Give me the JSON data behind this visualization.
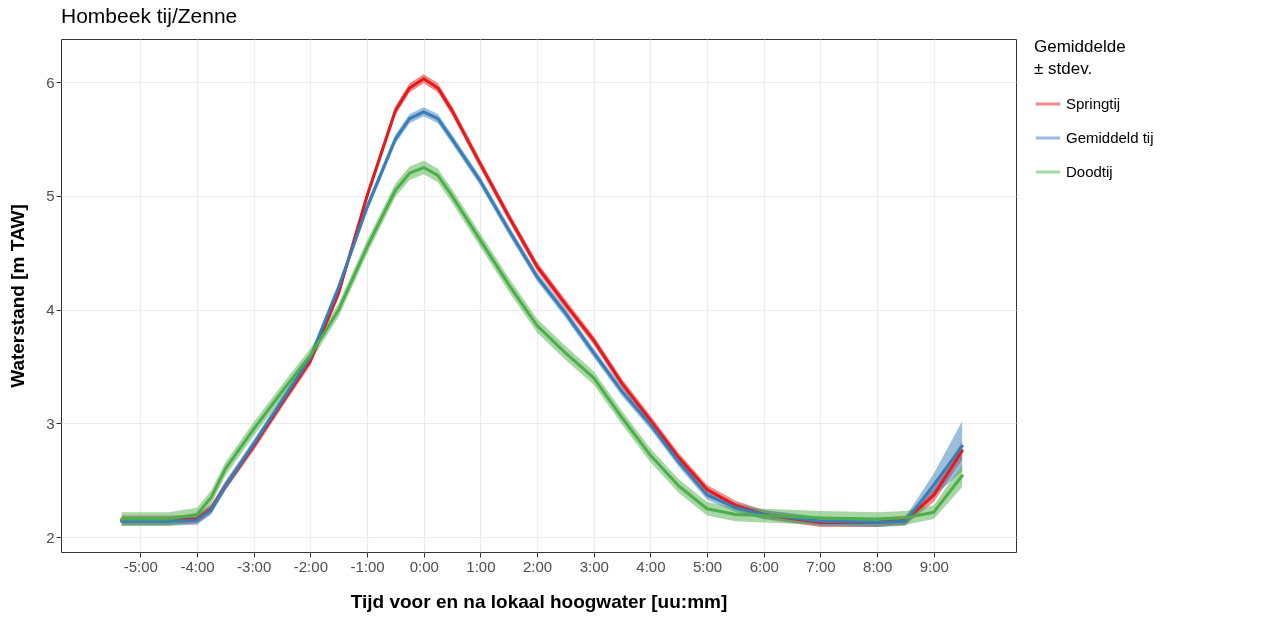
{
  "chart_data": {
    "type": "line",
    "title": "Hombeek tij/Zenne",
    "xlabel": "Tijd voor en na lokaal hoogwater [uu:mm]",
    "ylabel": "Waterstand [m TAW]",
    "legend_title": "Gemiddelde\n± stdev.",
    "legend": "right",
    "grid": true,
    "line_style": "solid",
    "x": [
      -5.33,
      -5,
      -4.5,
      -4,
      -3.75,
      -3.5,
      -3,
      -2.5,
      -2,
      -1.5,
      -1,
      -0.5,
      -0.25,
      0,
      0.25,
      0.5,
      1,
      1.5,
      2,
      2.5,
      3,
      3.5,
      4,
      4.5,
      5,
      5.5,
      6,
      7,
      8,
      8.5,
      9,
      9.5
    ],
    "xlim": [
      -6.4,
      10.45
    ],
    "ylim": [
      1.87,
      6.38
    ],
    "xticks": [
      {
        "value": -5,
        "label": "-5:00"
      },
      {
        "value": -4,
        "label": "-4:00"
      },
      {
        "value": -3,
        "label": "-3:00"
      },
      {
        "value": -2,
        "label": "-2:00"
      },
      {
        "value": -1,
        "label": "-1:00"
      },
      {
        "value": 0,
        "label": "0:00"
      },
      {
        "value": 1,
        "label": "1:00"
      },
      {
        "value": 2,
        "label": "2:00"
      },
      {
        "value": 3,
        "label": "3:00"
      },
      {
        "value": 4,
        "label": "4:00"
      },
      {
        "value": 5,
        "label": "5:00"
      },
      {
        "value": 6,
        "label": "6:00"
      },
      {
        "value": 7,
        "label": "7:00"
      },
      {
        "value": 8,
        "label": "8:00"
      },
      {
        "value": 9,
        "label": "9:00"
      }
    ],
    "yticks": [
      2,
      3,
      4,
      5,
      6
    ],
    "series": [
      {
        "name": "Springtij",
        "color": "#e41a1c",
        "values": [
          2.15,
          2.15,
          2.15,
          2.16,
          2.25,
          2.45,
          2.8,
          3.18,
          3.55,
          4.15,
          5.0,
          5.75,
          5.95,
          6.03,
          5.95,
          5.75,
          5.28,
          4.82,
          4.38,
          4.05,
          3.73,
          3.35,
          3.03,
          2.7,
          2.42,
          2.28,
          2.2,
          2.13,
          2.13,
          2.15,
          2.37,
          2.76
        ],
        "lower": [
          2.11,
          2.11,
          2.11,
          2.12,
          2.21,
          2.41,
          2.76,
          3.14,
          3.51,
          4.11,
          4.96,
          5.71,
          5.91,
          5.99,
          5.91,
          5.71,
          5.24,
          4.78,
          4.34,
          4.01,
          3.69,
          3.31,
          2.99,
          2.66,
          2.38,
          2.24,
          2.16,
          2.09,
          2.09,
          2.11,
          2.31,
          2.68
        ],
        "upper": [
          2.19,
          2.19,
          2.19,
          2.2,
          2.29,
          2.49,
          2.84,
          3.22,
          3.59,
          4.19,
          5.04,
          5.79,
          5.99,
          6.07,
          5.99,
          5.79,
          5.32,
          4.86,
          4.42,
          4.09,
          3.77,
          3.39,
          3.07,
          2.74,
          2.46,
          2.32,
          2.24,
          2.17,
          2.17,
          2.19,
          2.43,
          2.84
        ]
      },
      {
        "name": "Gemiddeld tij",
        "color": "#377eb8",
        "values": [
          2.14,
          2.14,
          2.14,
          2.15,
          2.24,
          2.45,
          2.82,
          3.2,
          3.58,
          4.2,
          4.9,
          5.5,
          5.68,
          5.74,
          5.68,
          5.5,
          5.13,
          4.7,
          4.29,
          3.97,
          3.62,
          3.28,
          2.99,
          2.66,
          2.37,
          2.26,
          2.2,
          2.14,
          2.13,
          2.14,
          2.46,
          2.8
        ],
        "lower": [
          2.1,
          2.1,
          2.1,
          2.11,
          2.2,
          2.41,
          2.78,
          3.16,
          3.54,
          4.16,
          4.86,
          5.46,
          5.64,
          5.7,
          5.64,
          5.46,
          5.09,
          4.66,
          4.25,
          3.93,
          3.58,
          3.24,
          2.95,
          2.62,
          2.33,
          2.22,
          2.16,
          2.1,
          2.09,
          2.1,
          2.36,
          2.58
        ],
        "upper": [
          2.18,
          2.18,
          2.18,
          2.19,
          2.28,
          2.49,
          2.86,
          3.24,
          3.62,
          4.24,
          4.94,
          5.54,
          5.72,
          5.78,
          5.72,
          5.54,
          5.17,
          4.74,
          4.33,
          4.01,
          3.66,
          3.32,
          3.03,
          2.7,
          2.41,
          2.3,
          2.24,
          2.18,
          2.17,
          2.18,
          2.56,
          3.02
        ]
      },
      {
        "name": "Doodtij",
        "color": "#4daf4a",
        "values": [
          2.16,
          2.16,
          2.16,
          2.2,
          2.35,
          2.6,
          2.95,
          3.28,
          3.6,
          4.0,
          4.55,
          5.05,
          5.2,
          5.25,
          5.18,
          5.0,
          4.61,
          4.22,
          3.86,
          3.62,
          3.4,
          3.05,
          2.72,
          2.45,
          2.25,
          2.2,
          2.19,
          2.17,
          2.16,
          2.17,
          2.22,
          2.54
        ],
        "lower": [
          2.1,
          2.1,
          2.1,
          2.14,
          2.29,
          2.54,
          2.89,
          3.22,
          3.54,
          3.94,
          4.49,
          4.99,
          5.14,
          5.19,
          5.12,
          4.94,
          4.55,
          4.16,
          3.8,
          3.56,
          3.34,
          2.99,
          2.66,
          2.39,
          2.19,
          2.14,
          2.13,
          2.11,
          2.1,
          2.11,
          2.16,
          2.44
        ],
        "upper": [
          2.22,
          2.22,
          2.22,
          2.26,
          2.41,
          2.66,
          3.01,
          3.34,
          3.66,
          4.06,
          4.61,
          5.11,
          5.26,
          5.31,
          5.24,
          5.06,
          4.67,
          4.28,
          3.92,
          3.68,
          3.46,
          3.11,
          2.78,
          2.51,
          2.31,
          2.26,
          2.25,
          2.23,
          2.22,
          2.23,
          2.28,
          2.64
        ]
      }
    ]
  }
}
